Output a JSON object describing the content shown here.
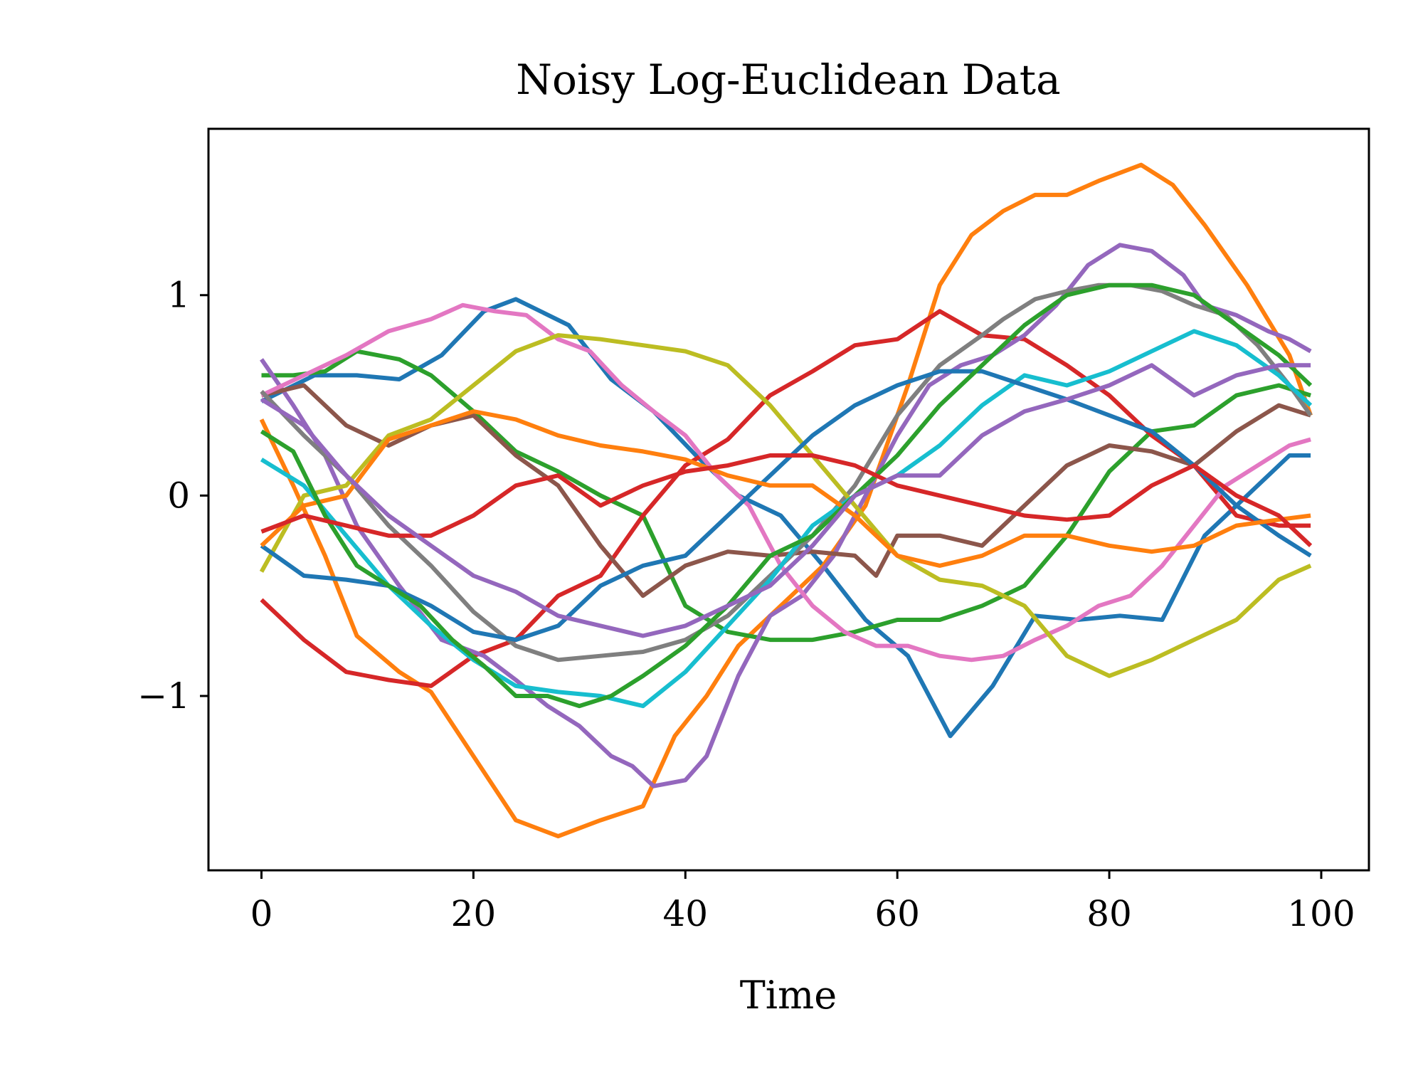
{
  "chart_data": {
    "type": "line",
    "title": "Noisy Log-Euclidean Data",
    "xlabel": "Time",
    "ylabel": "",
    "xlim": [
      -5,
      104.5
    ],
    "ylim": [
      -1.87,
      1.83
    ],
    "xticks": [
      0,
      20,
      40,
      60,
      80,
      100
    ],
    "xtick_labels": [
      "0",
      "20",
      "40",
      "60",
      "80",
      "100"
    ],
    "yticks": [
      -1,
      0,
      1
    ],
    "ytick_labels": [
      "−1",
      "0",
      "1"
    ],
    "grid": false,
    "series": [
      {
        "color": "#1f77b4",
        "x": [
          0,
          5,
          9,
          13,
          17,
          21,
          24,
          29,
          33,
          37,
          41,
          45,
          49,
          53,
          57,
          61,
          65,
          69,
          73,
          77,
          81,
          85,
          89,
          93,
          97,
          99
        ],
        "y": [
          0.47,
          0.6,
          0.6,
          0.58,
          0.7,
          0.92,
          0.98,
          0.85,
          0.58,
          0.42,
          0.2,
          0.0,
          -0.1,
          -0.35,
          -0.62,
          -0.8,
          -1.2,
          -0.95,
          -0.6,
          -0.62,
          -0.6,
          -0.62,
          -0.2,
          0.0,
          0.2,
          0.2
        ]
      },
      {
        "color": "#ff7f0e",
        "x": [
          0,
          3,
          6,
          9,
          13,
          16,
          20,
          24,
          28,
          32,
          36,
          39,
          42,
          45,
          49,
          53,
          57,
          61,
          64,
          67,
          70,
          73,
          76,
          79,
          83,
          86,
          89,
          93,
          97,
          99
        ],
        "y": [
          0.38,
          0.05,
          -0.3,
          -0.7,
          -0.88,
          -0.98,
          -1.3,
          -1.62,
          -1.7,
          -1.62,
          -1.55,
          -1.2,
          -1.0,
          -0.75,
          -0.55,
          -0.35,
          -0.05,
          0.55,
          1.05,
          1.3,
          1.42,
          1.5,
          1.5,
          1.57,
          1.65,
          1.55,
          1.35,
          1.05,
          0.7,
          0.4
        ]
      },
      {
        "color": "#2ca02c",
        "x": [
          0,
          3,
          6,
          9,
          13,
          16,
          20,
          24,
          28,
          32,
          36,
          40,
          44,
          48,
          52,
          56,
          60,
          64,
          68,
          72,
          76,
          80,
          84,
          88,
          92,
          96,
          99
        ],
        "y": [
          0.6,
          0.6,
          0.62,
          0.72,
          0.68,
          0.6,
          0.42,
          0.22,
          0.12,
          0.0,
          -0.1,
          -0.55,
          -0.68,
          -0.72,
          -0.72,
          -0.68,
          -0.62,
          -0.62,
          -0.55,
          -0.45,
          -0.2,
          0.12,
          0.32,
          0.35,
          0.5,
          0.55,
          0.5
        ]
      },
      {
        "color": "#d62728",
        "x": [
          0,
          4,
          8,
          12,
          16,
          20,
          24,
          28,
          32,
          36,
          40,
          44,
          48,
          52,
          56,
          60,
          64,
          68,
          72,
          76,
          80,
          84,
          88,
          92,
          96,
          99
        ],
        "y": [
          -0.52,
          -0.72,
          -0.88,
          -0.92,
          -0.95,
          -0.8,
          -0.72,
          -0.5,
          -0.4,
          -0.1,
          0.15,
          0.28,
          0.5,
          0.62,
          0.75,
          0.78,
          0.92,
          0.8,
          0.78,
          0.65,
          0.5,
          0.3,
          0.15,
          -0.1,
          -0.15,
          -0.15
        ]
      },
      {
        "color": "#9467bd",
        "x": [
          0,
          3,
          6,
          9,
          13,
          17,
          21,
          24,
          27,
          30,
          33,
          35,
          37,
          40,
          42,
          45,
          48,
          51,
          54,
          57,
          60,
          63,
          66,
          69,
          72,
          75,
          78,
          81,
          84,
          87,
          89,
          92,
          95,
          97,
          99
        ],
        "y": [
          0.68,
          0.45,
          0.2,
          -0.15,
          -0.45,
          -0.72,
          -0.8,
          -0.92,
          -1.05,
          -1.15,
          -1.3,
          -1.35,
          -1.45,
          -1.42,
          -1.3,
          -0.9,
          -0.6,
          -0.5,
          -0.3,
          0.0,
          0.3,
          0.55,
          0.65,
          0.7,
          0.8,
          0.95,
          1.15,
          1.25,
          1.22,
          1.1,
          0.95,
          0.9,
          0.82,
          0.78,
          0.72
        ]
      },
      {
        "color": "#8c564b",
        "x": [
          0,
          4,
          8,
          12,
          16,
          20,
          24,
          28,
          32,
          36,
          40,
          44,
          48,
          52,
          56,
          58,
          60,
          64,
          68,
          72,
          76,
          80,
          84,
          88,
          92,
          96,
          99
        ],
        "y": [
          0.5,
          0.55,
          0.35,
          0.25,
          0.35,
          0.4,
          0.2,
          0.05,
          -0.25,
          -0.5,
          -0.35,
          -0.28,
          -0.3,
          -0.28,
          -0.3,
          -0.4,
          -0.2,
          -0.2,
          -0.25,
          -0.05,
          0.15,
          0.25,
          0.22,
          0.15,
          0.32,
          0.45,
          0.4
        ]
      },
      {
        "color": "#e377c2",
        "x": [
          0,
          4,
          8,
          12,
          16,
          19,
          22,
          25,
          28,
          31,
          34,
          37,
          40,
          43,
          46,
          49,
          52,
          55,
          58,
          61,
          64,
          67,
          70,
          73,
          76,
          79,
          82,
          85,
          88,
          91,
          94,
          97,
          99
        ],
        "y": [
          0.5,
          0.6,
          0.7,
          0.82,
          0.88,
          0.95,
          0.92,
          0.9,
          0.78,
          0.72,
          0.55,
          0.42,
          0.3,
          0.1,
          -0.05,
          -0.35,
          -0.55,
          -0.68,
          -0.75,
          -0.75,
          -0.8,
          -0.82,
          -0.8,
          -0.72,
          -0.65,
          -0.55,
          -0.5,
          -0.35,
          -0.15,
          0.05,
          0.15,
          0.25,
          0.28
        ]
      },
      {
        "color": "#7f7f7f",
        "x": [
          0,
          4,
          8,
          12,
          16,
          20,
          24,
          28,
          32,
          36,
          40,
          44,
          48,
          52,
          56,
          60,
          64,
          68,
          70,
          73,
          76,
          79,
          82,
          85,
          88,
          91,
          94,
          97,
          99
        ],
        "y": [
          0.52,
          0.3,
          0.1,
          -0.15,
          -0.35,
          -0.58,
          -0.75,
          -0.82,
          -0.8,
          -0.78,
          -0.72,
          -0.6,
          -0.4,
          -0.2,
          0.05,
          0.4,
          0.65,
          0.8,
          0.88,
          0.98,
          1.02,
          1.05,
          1.05,
          1.02,
          0.95,
          0.9,
          0.75,
          0.55,
          0.4
        ]
      },
      {
        "color": "#bcbd22",
        "x": [
          0,
          4,
          8,
          12,
          16,
          20,
          24,
          28,
          32,
          36,
          40,
          44,
          48,
          52,
          56,
          60,
          64,
          68,
          72,
          76,
          80,
          84,
          88,
          92,
          96,
          99
        ],
        "y": [
          -0.38,
          0.0,
          0.05,
          0.3,
          0.38,
          0.55,
          0.72,
          0.8,
          0.78,
          0.75,
          0.72,
          0.65,
          0.45,
          0.2,
          -0.05,
          -0.3,
          -0.42,
          -0.45,
          -0.55,
          -0.8,
          -0.9,
          -0.82,
          -0.72,
          -0.62,
          -0.42,
          -0.35
        ]
      },
      {
        "color": "#17becf",
        "x": [
          0,
          4,
          8,
          12,
          16,
          20,
          24,
          28,
          32,
          36,
          40,
          44,
          48,
          52,
          56,
          60,
          64,
          68,
          72,
          76,
          80,
          84,
          88,
          92,
          96,
          99
        ],
        "y": [
          0.18,
          0.05,
          -0.2,
          -0.45,
          -0.65,
          -0.82,
          -0.95,
          -0.98,
          -1.0,
          -1.05,
          -0.88,
          -0.65,
          -0.42,
          -0.15,
          0.0,
          0.1,
          0.25,
          0.45,
          0.6,
          0.55,
          0.62,
          0.72,
          0.82,
          0.75,
          0.6,
          0.45
        ]
      },
      {
        "color": "#1f77b4",
        "x": [
          0,
          4,
          8,
          12,
          16,
          20,
          24,
          28,
          32,
          36,
          40,
          44,
          48,
          52,
          56,
          60,
          64,
          68,
          72,
          76,
          80,
          84,
          88,
          92,
          96,
          99
        ],
        "y": [
          -0.25,
          -0.4,
          -0.42,
          -0.45,
          -0.55,
          -0.68,
          -0.72,
          -0.65,
          -0.45,
          -0.35,
          -0.3,
          -0.1,
          0.1,
          0.3,
          0.45,
          0.55,
          0.62,
          0.62,
          0.55,
          0.48,
          0.4,
          0.32,
          0.15,
          -0.05,
          -0.2,
          -0.3
        ]
      },
      {
        "color": "#ff7f0e",
        "x": [
          0,
          4,
          8,
          12,
          16,
          20,
          24,
          28,
          32,
          36,
          40,
          44,
          48,
          52,
          56,
          60,
          64,
          68,
          72,
          76,
          80,
          84,
          88,
          92,
          96,
          99
        ],
        "y": [
          -0.25,
          -0.05,
          0.0,
          0.28,
          0.35,
          0.42,
          0.38,
          0.3,
          0.25,
          0.22,
          0.18,
          0.1,
          0.05,
          0.05,
          -0.1,
          -0.3,
          -0.35,
          -0.3,
          -0.2,
          -0.2,
          -0.25,
          -0.28,
          -0.25,
          -0.15,
          -0.12,
          -0.1
        ]
      },
      {
        "color": "#2ca02c",
        "x": [
          0,
          3,
          6,
          9,
          12,
          15,
          18,
          21,
          24,
          27,
          30,
          33,
          36,
          40,
          44,
          48,
          52,
          56,
          60,
          64,
          68,
          72,
          76,
          80,
          84,
          88,
          92,
          96,
          99
        ],
        "y": [
          0.32,
          0.22,
          -0.1,
          -0.35,
          -0.45,
          -0.55,
          -0.72,
          -0.85,
          -1.0,
          -1.0,
          -1.05,
          -1.0,
          -0.9,
          -0.75,
          -0.55,
          -0.3,
          -0.2,
          0.0,
          0.2,
          0.45,
          0.65,
          0.85,
          1.0,
          1.05,
          1.05,
          1.0,
          0.85,
          0.7,
          0.55
        ]
      },
      {
        "color": "#d62728",
        "x": [
          0,
          4,
          8,
          12,
          16,
          20,
          24,
          28,
          32,
          36,
          40,
          44,
          48,
          52,
          56,
          60,
          64,
          68,
          72,
          76,
          80,
          84,
          88,
          92,
          96,
          99
        ],
        "y": [
          -0.18,
          -0.1,
          -0.15,
          -0.2,
          -0.2,
          -0.1,
          0.05,
          0.1,
          -0.05,
          0.05,
          0.12,
          0.15,
          0.2,
          0.2,
          0.15,
          0.05,
          0.0,
          -0.05,
          -0.1,
          -0.12,
          -0.1,
          0.05,
          0.15,
          0.0,
          -0.1,
          -0.25
        ]
      },
      {
        "color": "#9467bd",
        "x": [
          0,
          4,
          8,
          12,
          16,
          20,
          24,
          28,
          32,
          36,
          40,
          44,
          48,
          52,
          56,
          60,
          64,
          68,
          72,
          76,
          80,
          84,
          88,
          92,
          96,
          99
        ],
        "y": [
          0.48,
          0.35,
          0.1,
          -0.1,
          -0.25,
          -0.4,
          -0.48,
          -0.6,
          -0.65,
          -0.7,
          -0.65,
          -0.55,
          -0.45,
          -0.25,
          0.0,
          0.1,
          0.1,
          0.3,
          0.42,
          0.48,
          0.55,
          0.65,
          0.5,
          0.6,
          0.65,
          0.65
        ]
      }
    ]
  }
}
